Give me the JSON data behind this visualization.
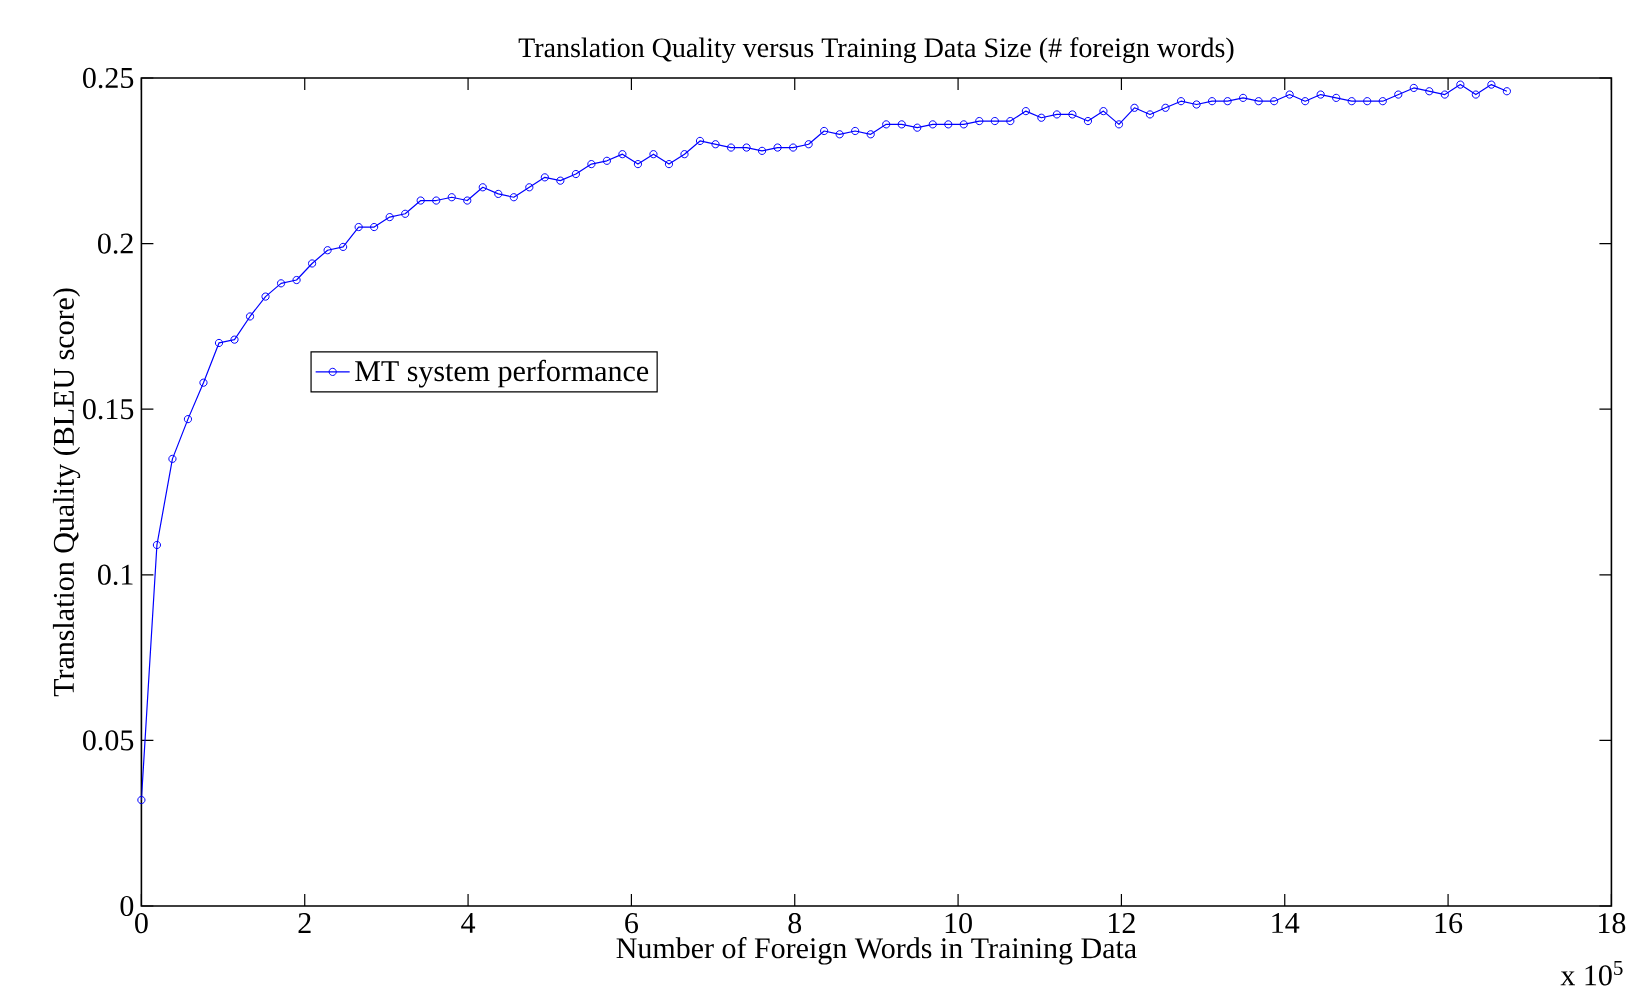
{
  "chart_data": {
    "type": "line",
    "title": "Translation Quality versus Training Data Size (# foreign words)",
    "xlabel": "Number of Foreign Words in Training Data",
    "ylabel": "Translation Quality (BLEU score)",
    "annotations": [
      "x 10$^{5}$"
    ],
    "xlim": [
      0,
      18
    ],
    "ylim": [
      0,
      0.25
    ],
    "xticks": [
      0,
      2,
      4,
      6,
      8,
      10,
      12,
      14,
      16,
      18
    ],
    "yticks": [
      0,
      0.05,
      0.1,
      0.15,
      0.2,
      0.25
    ],
    "grid": false,
    "legend": "top left",
    "marker": "circle",
    "line_style": "solid",
    "x": [
      0,
      0.19,
      0.38,
      0.57,
      0.76,
      0.95,
      1.14,
      1.33,
      1.52,
      1.71,
      1.9,
      2.09,
      2.28,
      2.47,
      2.66,
      2.85,
      3.04,
      3.23,
      3.42,
      3.61,
      3.8,
      3.99,
      4.18,
      4.37,
      4.56,
      4.75,
      4.94,
      5.13,
      5.32,
      5.51,
      5.7,
      5.89,
      6.08,
      6.27,
      6.46,
      6.65,
      6.84,
      7.03,
      7.22,
      7.41,
      7.6,
      7.79,
      7.98,
      8.17,
      8.36,
      8.55,
      8.74,
      8.93,
      9.12,
      9.31,
      9.5,
      9.69,
      9.88,
      10.07,
      10.26,
      10.45,
      10.64,
      10.83,
      11.02,
      11.21,
      11.4,
      11.59,
      11.78,
      11.97,
      12.16,
      12.35,
      12.54,
      12.73,
      12.92,
      13.11,
      13.3,
      13.49,
      13.68,
      13.87,
      14.06,
      14.25,
      14.44,
      14.63,
      14.82,
      15.01,
      15.2,
      15.39,
      15.58,
      15.77,
      15.96,
      16.15,
      16.34,
      16.53,
      16.72
    ],
    "series": [
      {
        "name": "MT system performance",
        "color": "#0000ff",
        "values": [
          0.032,
          0.109,
          0.135,
          0.147,
          0.158,
          0.17,
          0.171,
          0.178,
          0.184,
          0.188,
          0.189,
          0.194,
          0.198,
          0.199,
          0.205,
          0.205,
          0.208,
          0.209,
          0.213,
          0.213,
          0.214,
          0.213,
          0.217,
          0.215,
          0.214,
          0.217,
          0.22,
          0.219,
          0.221,
          0.224,
          0.225,
          0.227,
          0.224,
          0.227,
          0.224,
          0.227,
          0.231,
          0.23,
          0.229,
          0.229,
          0.228,
          0.229,
          0.229,
          0.23,
          0.234,
          0.233,
          0.234,
          0.233,
          0.236,
          0.236,
          0.235,
          0.236,
          0.236,
          0.236,
          0.237,
          0.237,
          0.237,
          0.24,
          0.238,
          0.239,
          0.239,
          0.237,
          0.24,
          0.236,
          0.241,
          0.239,
          0.241,
          0.243,
          0.242,
          0.243,
          0.243,
          0.244,
          0.243,
          0.243,
          0.245,
          0.243,
          0.245,
          0.244,
          0.243,
          0.243,
          0.243,
          0.245,
          0.247,
          0.246,
          0.245,
          0.248,
          0.245,
          0.248,
          0.246
        ]
      }
    ]
  }
}
